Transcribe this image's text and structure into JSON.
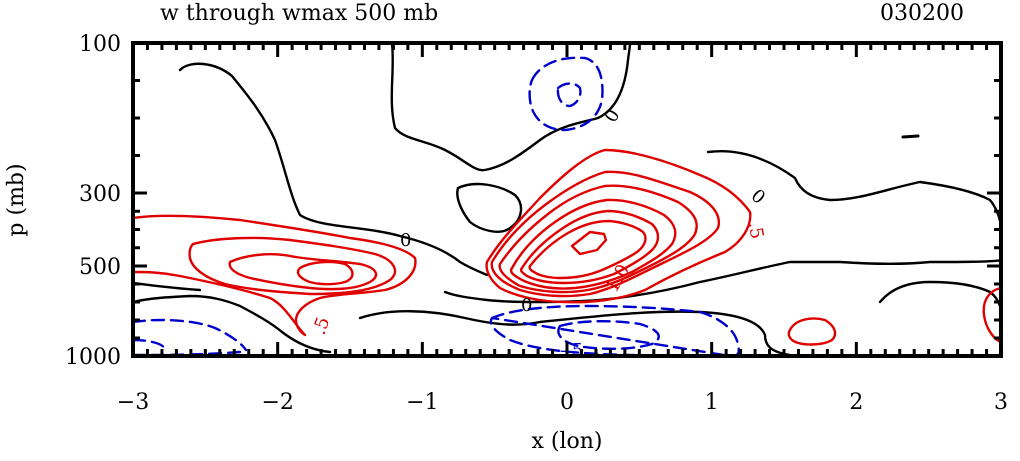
{
  "chart_data": {
    "type": "contour",
    "title": "w through wmax 500 mb",
    "time_label": "030200",
    "xlabel": "x (lon)",
    "ylabel": "p (mb)",
    "xlim": [
      -3,
      3
    ],
    "xticks": [
      -3,
      -2,
      -1,
      0,
      1,
      2,
      3
    ],
    "xtick_labels": [
      "−3",
      "−2",
      "−1",
      "0",
      "1",
      "2",
      "3"
    ],
    "yticks": [
      100,
      300,
      500,
      1000
    ],
    "ytick_labels": [
      "100",
      "300",
      "500",
      "1000"
    ],
    "y_scale": "pressure (inverted)",
    "positive_color": "#e00000",
    "zero_color": "#000000",
    "negative_color": "#0000cc",
    "negative_style": "dashed",
    "contour_labels": [
      "0",
      "0",
      "0",
      "0",
      ".5",
      ".5",
      "1.0",
      "-.5"
    ]
  }
}
